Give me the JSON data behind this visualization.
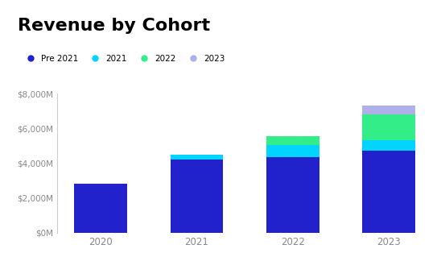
{
  "title": "Revenue by Cohort",
  "title_fontsize": 16,
  "title_fontweight": "bold",
  "years": [
    "2020",
    "2021",
    "2022",
    "2023"
  ],
  "cohorts": [
    "Pre 2021",
    "2021",
    "2022",
    "2023"
  ],
  "values": {
    "Pre 2021": [
      2800000,
      4200000,
      4350000,
      4700000
    ],
    "2021": [
      0,
      300000,
      700000,
      600000
    ],
    "2022": [
      0,
      0,
      500000,
      1500000
    ],
    "2023": [
      0,
      0,
      0,
      500000
    ]
  },
  "colors": {
    "Pre 2021": "#2222cc",
    "2021": "#00d4ff",
    "2022": "#33ee88",
    "2023": "#b0b0e8"
  },
  "ylim": [
    0,
    8000000
  ],
  "ytick_values": [
    0,
    2000000,
    4000000,
    6000000,
    8000000
  ],
  "ytick_labels": [
    "$0M",
    "$2,000M",
    "$4,000M",
    "$6,000M",
    "$8,000M"
  ],
  "background_color": "#ffffff",
  "bar_width": 0.55,
  "tick_color": "#888888",
  "spine_color": "#cccccc"
}
